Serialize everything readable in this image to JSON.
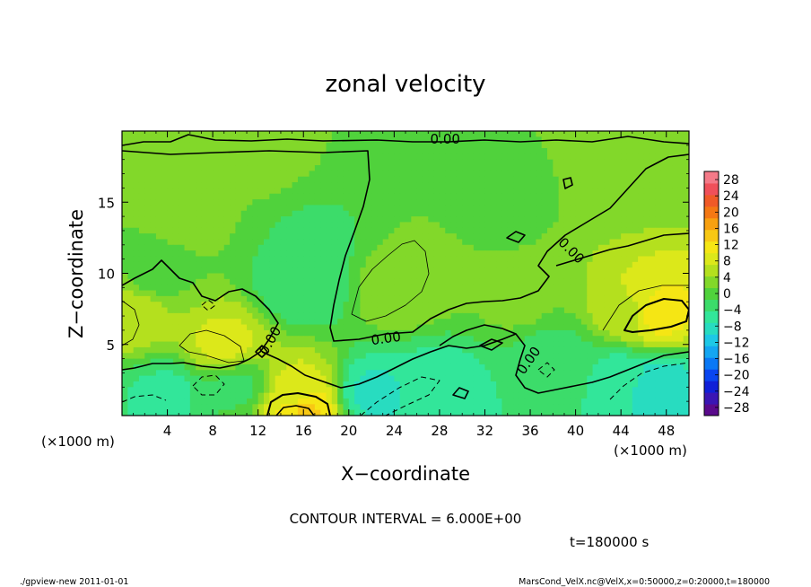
{
  "chart_data": {
    "type": "heatmap",
    "title": "zonal velocity",
    "xlabel": "X−coordinate",
    "ylabel": "Z−coordinate",
    "x_unit_left": "(×1000 m)",
    "x_unit_right": "(×1000 m)",
    "xlim": [
      0,
      50
    ],
    "ylim": [
      0,
      20
    ],
    "xticks": [
      "4",
      "8",
      "12",
      "16",
      "20",
      "24",
      "28",
      "32",
      "36",
      "40",
      "44",
      "48"
    ],
    "yticks": [
      "5",
      "10",
      "15"
    ],
    "contour_interval_text": "CONTOUR INTERVAL = 6.000E+00",
    "time_text": "t=180000 s",
    "contour_labels": [
      {
        "text": "0.00",
        "x": 28.5,
        "y": 19.3,
        "rot": 0
      },
      {
        "text": "0.00",
        "x": 39.5,
        "y": 11.5,
        "rot": 45
      },
      {
        "text": "0.00",
        "x": 23.3,
        "y": 5.3,
        "rot": -8
      },
      {
        "text": "0.00",
        "x": 13.2,
        "y": 5.2,
        "rot": -60
      },
      {
        "text": "0.00",
        "x": 36.0,
        "y": 3.8,
        "rot": -55
      }
    ],
    "colorbar": {
      "ticks": [
        "28",
        "24",
        "20",
        "16",
        "12",
        "8",
        "4",
        "0",
        "−4",
        "−8",
        "−12",
        "−16",
        "−20",
        "−24",
        "−28"
      ],
      "range": [
        -30,
        30
      ],
      "colors": [
        "#5a0a8c",
        "#3a16b4",
        "#1020d8",
        "#0a46f0",
        "#0a78f5",
        "#14a6f2",
        "#1ec8e6",
        "#28dcc0",
        "#32e69a",
        "#3cdc6a",
        "#50d23c",
        "#82d82a",
        "#b4e01e",
        "#dce81a",
        "#f5e614",
        "#f8c814",
        "#f8a010",
        "#f47814",
        "#f05a28",
        "#f0505a",
        "#f47a88"
      ]
    },
    "field_points": [
      {
        "x": 1,
        "y": 7,
        "v": 6
      },
      {
        "x": 9,
        "y": 5,
        "v": 8
      },
      {
        "x": 16,
        "y": 0.6,
        "v": 14
      },
      {
        "x": 15.5,
        "y": 1.2,
        "v": 8
      },
      {
        "x": 24.5,
        "y": 9,
        "v": 4
      },
      {
        "x": 47,
        "y": 7,
        "v": 12
      },
      {
        "x": 45,
        "y": 7,
        "v": 6
      },
      {
        "x": 16,
        "y": 9,
        "v": -4
      },
      {
        "x": 17,
        "y": 12,
        "v": -2
      },
      {
        "x": 22,
        "y": 1.5,
        "v": -8
      },
      {
        "x": 28,
        "y": 2,
        "v": -6
      },
      {
        "x": 47,
        "y": 2.3,
        "v": -9
      },
      {
        "x": 44,
        "y": 3,
        "v": -5
      },
      {
        "x": 4,
        "y": 1.5,
        "v": -5
      },
      {
        "x": 38,
        "y": 4,
        "v": -3
      },
      {
        "x": 45,
        "y": 18,
        "v": 2
      },
      {
        "x": 33,
        "y": 15,
        "v": 1
      },
      {
        "x": 6,
        "y": 14,
        "v": 2
      },
      {
        "x": 3,
        "y": 10,
        "v": 0.5
      },
      {
        "x": 35,
        "y": 8,
        "v": 2
      },
      {
        "x": 12,
        "y": 18,
        "v": 2
      },
      {
        "x": 10,
        "y": 2,
        "v": -2
      }
    ]
  },
  "footer": {
    "left": "./gpview-new  2011-01-01",
    "right": "MarsCond_VelX.nc@VelX,x=0:50000,z=0:20000,t=180000"
  },
  "colors": {
    "contour": "#000000",
    "frame": "#000000",
    "background": "#ffffff"
  }
}
